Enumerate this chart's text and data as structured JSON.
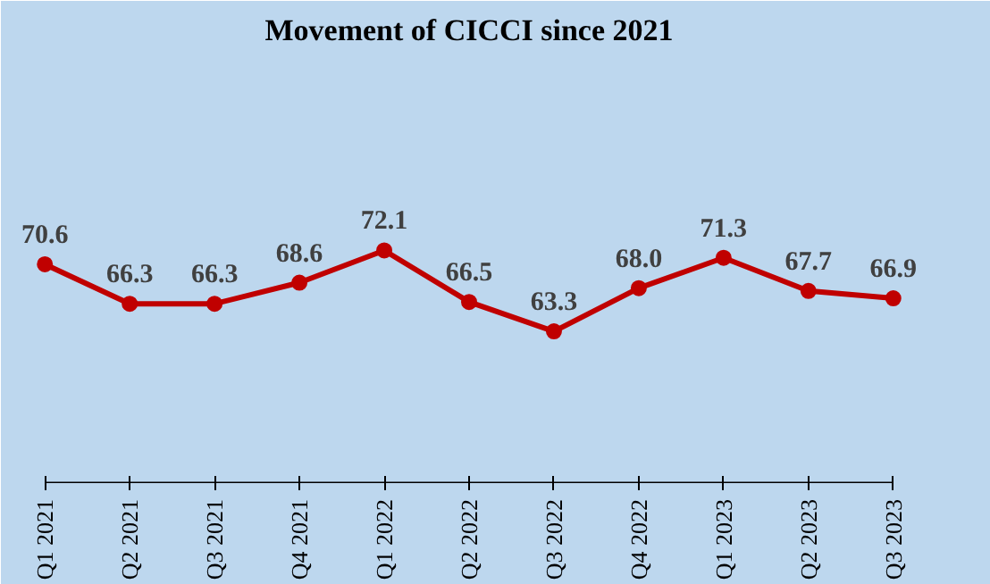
{
  "chart_data": {
    "type": "line",
    "title": "Movement of CICCI since 2021",
    "categories": [
      "Q1 2021",
      "Q2 2021",
      "Q3 2021",
      "Q4 2021",
      "Q1 2022",
      "Q2 2022",
      "Q3 2022",
      "Q4 2022",
      "Q1 2023",
      "Q2 2023",
      "Q3 2023"
    ],
    "series": [
      {
        "color": "#c00000",
        "values": [
          70.6,
          66.3,
          66.3,
          68.6,
          72.1,
          66.5,
          63.3,
          68.0,
          71.3,
          67.7,
          66.9
        ],
        "value_labels": [
          "70.6",
          "66.3",
          "66.3",
          "68.6",
          "72.1",
          "66.5",
          "63.3",
          "68.0",
          "71.3",
          "67.7",
          "66.9"
        ]
      }
    ],
    "marker": "circle",
    "line_style": "solid",
    "grid": false,
    "tick_labels": "x"
  }
}
